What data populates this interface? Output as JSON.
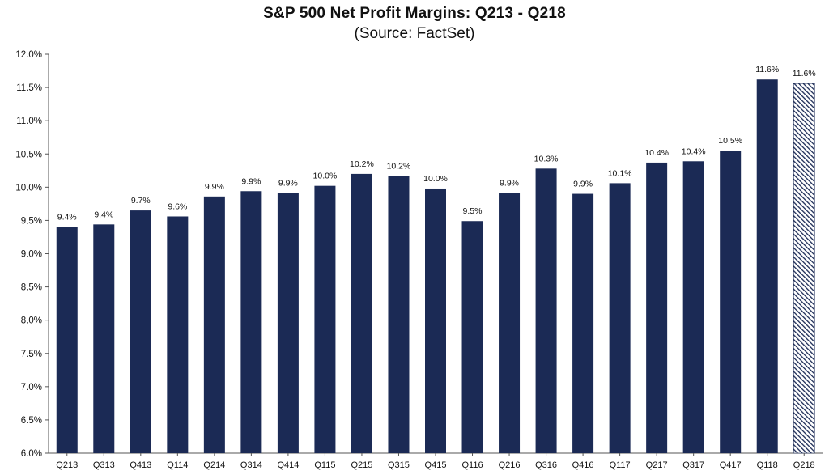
{
  "chart_data": {
    "type": "bar",
    "title": "S&P 500 Net Profit Margins: Q213 - Q218",
    "subtitle": "(Source: FactSet)",
    "categories": [
      "Q213",
      "Q313",
      "Q413",
      "Q114",
      "Q214",
      "Q314",
      "Q414",
      "Q115",
      "Q215",
      "Q315",
      "Q415",
      "Q116",
      "Q216",
      "Q316",
      "Q416",
      "Q117",
      "Q217",
      "Q317",
      "Q417",
      "Q118",
      "Q218"
    ],
    "values": [
      9.4,
      9.44,
      9.65,
      9.56,
      9.86,
      9.94,
      9.91,
      10.02,
      10.2,
      10.17,
      9.98,
      9.49,
      9.91,
      10.28,
      9.9,
      10.06,
      10.37,
      10.39,
      10.55,
      11.62,
      11.56
    ],
    "data_labels": [
      "9.4%",
      "9.4%",
      "9.7%",
      "9.6%",
      "9.9%",
      "9.9%",
      "9.9%",
      "10.0%",
      "10.2%",
      "10.2%",
      "10.0%",
      "9.5%",
      "9.9%",
      "10.3%",
      "9.9%",
      "10.1%",
      "10.4%",
      "10.4%",
      "10.5%",
      "11.6%",
      "11.6%"
    ],
    "estimated": [
      false,
      false,
      false,
      false,
      false,
      false,
      false,
      false,
      false,
      false,
      false,
      false,
      false,
      false,
      false,
      false,
      false,
      false,
      false,
      false,
      true
    ],
    "ylim": [
      6.0,
      12.0
    ],
    "yticks": [
      "6.0%",
      "6.5%",
      "7.0%",
      "7.5%",
      "8.0%",
      "8.5%",
      "9.0%",
      "9.5%",
      "10.0%",
      "10.5%",
      "11.0%",
      "11.5%",
      "12.0%"
    ],
    "xlabel": "",
    "ylabel": "",
    "grid": false,
    "colors": {
      "bar": "#1b2a55",
      "estimate_hatch": "#1b2a55",
      "axis": "#555555"
    }
  }
}
